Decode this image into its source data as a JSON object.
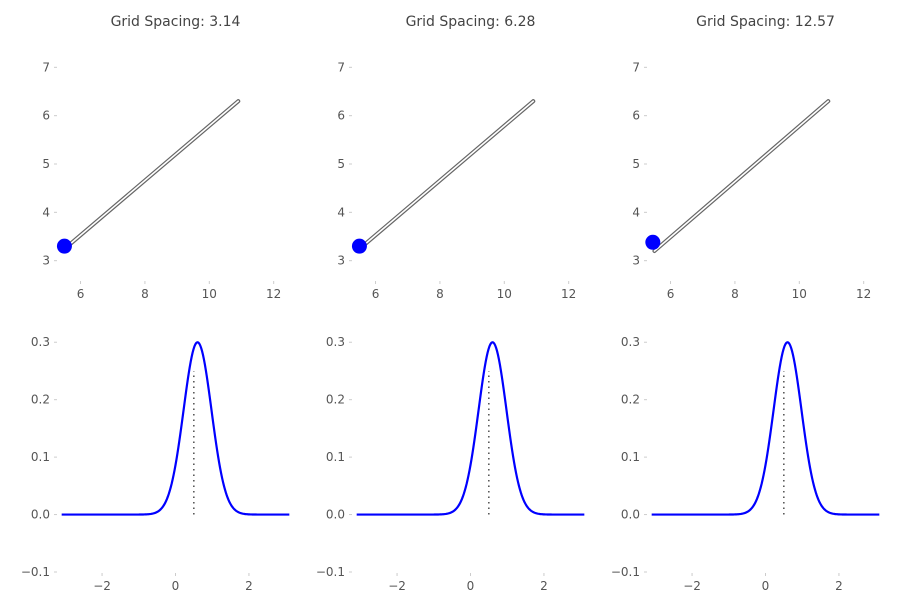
{
  "colors": {
    "marker": "#0000ff",
    "pdf_line": "#0000ff",
    "trajectory": "#666666",
    "tick_text": "#555555",
    "title_text": "#444444",
    "background": "#ffffff"
  },
  "chart_data": [
    {
      "type": "line",
      "panel": "top-left",
      "title": "Grid Spacing: 3.14",
      "xlim": [
        5.3,
        12.6
      ],
      "ylim": [
        2.6,
        7.4
      ],
      "xticks": [
        6,
        8,
        10,
        12
      ],
      "yticks": [
        3,
        4,
        5,
        6,
        7
      ],
      "line": {
        "x": [
          5.6,
          10.9
        ],
        "y": [
          3.3,
          6.3
        ]
      },
      "marker": {
        "x": 5.5,
        "y": 3.3
      },
      "grid": false
    },
    {
      "type": "line",
      "panel": "top-middle",
      "title": "Grid Spacing: 6.28",
      "xlim": [
        5.3,
        12.6
      ],
      "ylim": [
        2.6,
        7.4
      ],
      "xticks": [
        6,
        8,
        10,
        12
      ],
      "yticks": [
        3,
        4,
        5,
        6,
        7
      ],
      "line": {
        "x": [
          5.6,
          10.9
        ],
        "y": [
          3.3,
          6.3
        ]
      },
      "marker": {
        "x": 5.5,
        "y": 3.3
      },
      "grid": false
    },
    {
      "type": "line",
      "panel": "top-right",
      "title": "Grid Spacing: 12.57",
      "xlim": [
        5.3,
        12.6
      ],
      "ylim": [
        2.6,
        7.4
      ],
      "xticks": [
        6,
        8,
        10,
        12
      ],
      "yticks": [
        3,
        4,
        5,
        6,
        7
      ],
      "line": {
        "x": [
          5.5,
          10.9
        ],
        "y": [
          3.2,
          6.3
        ]
      },
      "marker": {
        "x": 5.45,
        "y": 3.38
      },
      "grid": false
    },
    {
      "type": "line",
      "panel": "bottom-left",
      "xlim": [
        -3.2,
        3.2
      ],
      "ylim": [
        -0.1,
        0.33
      ],
      "xticks": [
        -2,
        0,
        2
      ],
      "yticks": [
        -0.1,
        0.0,
        0.1,
        0.2,
        0.3
      ],
      "curve": {
        "form": "gaussian",
        "mean": 0.6,
        "sd": 0.38,
        "peak": 0.3,
        "x_range": [
          -3.1,
          3.1
        ]
      },
      "vline": {
        "x": 0.5,
        "y_range": [
          0.0,
          0.25
        ],
        "style": "dotted"
      },
      "grid": false
    },
    {
      "type": "line",
      "panel": "bottom-middle",
      "xlim": [
        -3.2,
        3.2
      ],
      "ylim": [
        -0.1,
        0.33
      ],
      "xticks": [
        -2,
        0,
        2
      ],
      "yticks": [
        -0.1,
        0.0,
        0.1,
        0.2,
        0.3
      ],
      "curve": {
        "form": "gaussian",
        "mean": 0.6,
        "sd": 0.38,
        "peak": 0.3,
        "x_range": [
          -3.1,
          3.1
        ]
      },
      "vline": {
        "x": 0.5,
        "y_range": [
          0.0,
          0.25
        ],
        "style": "dotted"
      },
      "grid": false
    },
    {
      "type": "line",
      "panel": "bottom-right",
      "xlim": [
        -3.2,
        3.2
      ],
      "ylim": [
        -0.1,
        0.33
      ],
      "xticks": [
        -2,
        0,
        2
      ],
      "yticks": [
        -0.1,
        0.0,
        0.1,
        0.2,
        0.3
      ],
      "curve": {
        "form": "gaussian",
        "mean": 0.6,
        "sd": 0.38,
        "peak": 0.3,
        "x_range": [
          -3.1,
          3.1
        ]
      },
      "vline": {
        "x": 0.5,
        "y_range": [
          0.0,
          0.25
        ],
        "style": "dotted"
      },
      "grid": false
    }
  ]
}
